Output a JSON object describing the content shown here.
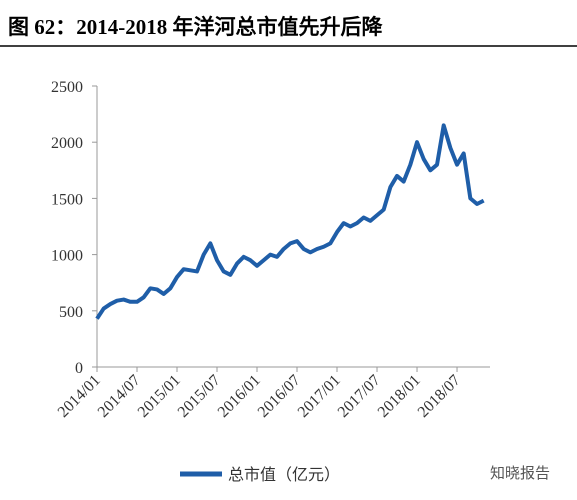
{
  "chart_data": {
    "type": "line",
    "title": "图 62：2014-2018 年洋河总市值先升后降",
    "categories": [
      "2014/01",
      null,
      null,
      null,
      null,
      null,
      "2014/07",
      null,
      null,
      null,
      null,
      null,
      "2015/01",
      null,
      null,
      null,
      null,
      null,
      "2015/07",
      null,
      null,
      null,
      null,
      null,
      "2016/01",
      null,
      null,
      null,
      null,
      null,
      "2016/07",
      null,
      null,
      null,
      null,
      null,
      "2017/01",
      null,
      null,
      null,
      null,
      null,
      "2017/07",
      null,
      null,
      null,
      null,
      null,
      "2018/01",
      null,
      null,
      null,
      null,
      null,
      "2018/07",
      null,
      null,
      null,
      null
    ],
    "series": [
      {
        "name": "总市值（亿元）",
        "color": "#1f5ea8",
        "values": [
          430,
          520,
          560,
          590,
          600,
          580,
          580,
          620,
          700,
          690,
          650,
          700,
          800,
          870,
          860,
          850,
          1000,
          1100,
          950,
          850,
          820,
          920,
          980,
          950,
          900,
          950,
          1000,
          980,
          1050,
          1100,
          1120,
          1050,
          1020,
          1050,
          1070,
          1100,
          1200,
          1280,
          1250,
          1280,
          1330,
          1300,
          1350,
          1400,
          1600,
          1700,
          1650,
          1800,
          2000,
          1850,
          1750,
          1800,
          2150,
          1950,
          1800,
          1900,
          1500,
          1450,
          1480
        ]
      }
    ],
    "ylim": [
      0,
      2500
    ],
    "yticks": [
      0,
      500,
      1000,
      1500,
      2000,
      2500
    ],
    "watermark": "知晓报告"
  }
}
